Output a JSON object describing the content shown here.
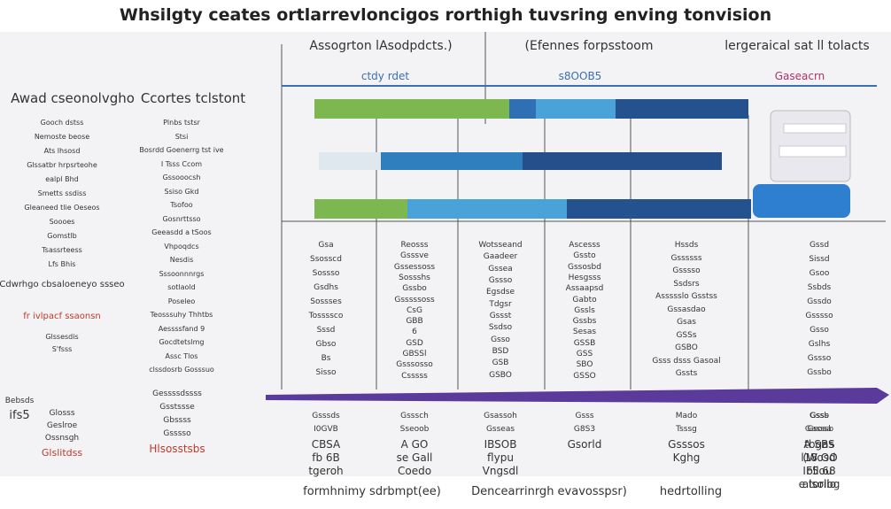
{
  "header": {
    "title": "Whsilgty ceates ortlarrevloncigos rorthigh tuvsring enving tonvision",
    "col_a": "Assogrton lAsodpdcts.)",
    "col_b": "(Efennes forpsstoom",
    "col_c": "lergeraical sat ll tolacts",
    "left_a": "Awad cseonolvgho",
    "left_b": "Ccortes tclstont"
  },
  "bar_labels": [
    "ctdy rdet",
    "s8OOB5",
    "Gaseacrn"
  ],
  "left_list": [
    "Gooch dstss",
    "Nemoste beose",
    "Ats lhsosd",
    "Glssatbr hrpsrteohe",
    "ealpl Bhd",
    "Smetts ssdiss",
    "Gleaneed tlie Oeseos",
    "Soooes",
    "Gomstlb",
    "Tsassrteess",
    "Lfs Bhis",
    "Cdwrhgo cbsaloeneyo ssseo",
    "fr ivlpacf ssaonsn",
    "Glssesdis",
    "S'fsss"
  ],
  "mid_list": [
    "Plnbs tstsr",
    "Stsi",
    "Bosrdd Goenerrg tst ive",
    "I Tsss Ccom",
    "Gssooocsh",
    "Ssiso Gkd",
    "Tsofoo",
    "Gosnrttsso",
    "Geeasdd a tSoos",
    "Vhpoqdcs",
    "Nesdis",
    "Sssoonnnrgs",
    "sotlaold",
    "Poseleo",
    "Teosssuhy Thhtbs",
    "Aessssfand 9",
    "Gocdtetslmg",
    "Assc Tlos",
    "clssdosrb Gosssuo"
  ],
  "grid": [
    [
      "Gsa",
      "Ssosscd",
      "Sossso",
      "Gsdhs",
      "Sossses",
      "Tossssco",
      "Sssd",
      "Gbso",
      "Bs",
      "Sisso"
    ],
    [
      "Reosss",
      "Gsssve",
      "Gssessoss",
      "Sossshs",
      "Gssbo",
      "Gsssssoss",
      "CsG",
      "GBB",
      "6",
      "GSD",
      "GBSSl",
      "Gsssosso",
      "Csssss"
    ],
    [
      "Wotsseand",
      "Gaadeer",
      "Gssea",
      "Gssso",
      "Egsdse",
      "Tdgsr",
      "Gssst",
      "Ssdso",
      "Gsso",
      "BSD",
      "GSB",
      "GSBO"
    ],
    [
      "Ascesss",
      "Gssto",
      "Gssosbd",
      "Hesgsss",
      "Assaapsd",
      "Gabto",
      "Gssls",
      "Gssbs",
      "Sesas",
      "GSSB",
      "GSS",
      "SBO",
      "GSSO"
    ],
    [
      "Hssds",
      "Gssssss",
      "Gsssso",
      "Ssdsrs",
      "Assssslo Gsstss",
      "Gssasdao",
      "Gsas",
      "GSSs",
      "GSBO",
      "Gsss dsss Gasoal",
      "Gssts"
    ],
    [
      "Gssd",
      "Sissd",
      "Gsoo",
      "Ssbds",
      "Gssdo",
      "Gsssso",
      "Gsso",
      "Gslhs",
      "Gssso",
      "Gssbo"
    ]
  ],
  "bottom_left": [
    "Bebsds",
    "Glosss",
    "ifs5",
    "Geslroe",
    "Ossnsgh",
    "Glslitdss"
  ],
  "bottom_left2": [
    "Gessssdssss",
    "Gsstssse",
    "Gbssss",
    "Gsssso",
    "Hlsosstsbs"
  ],
  "bottom": [
    [
      "Gsssds",
      "I0GVB",
      "CBSA",
      "fb 6B",
      "tgeroh"
    ],
    [
      "Gsssch",
      "Sseoob",
      "A GO",
      "se Gall",
      "Coedo"
    ],
    [
      "Gsassoh",
      "Gsseas",
      "IBSOB",
      "flypu",
      "Vngsdl"
    ],
    [
      "Gsss",
      "G8S3",
      "Gsorld"
    ],
    [
      "Mado",
      "Tsssg",
      "Gsssos",
      "Kghg"
    ],
    [
      "Gsss",
      "Gasssb",
      "tbgas",
      "l18 OO",
      "IF5 68",
      "e toribg"
    ],
    [
      "Gssb",
      "Gsosa",
      "A SBS",
      "(Wosd",
      "ollou",
      "alsolio"
    ]
  ],
  "bottom_line": [
    "formhnimy sdrbmpt(ee)",
    "Dencearrinrgh evavosspsr)",
    "hedrtolling"
  ]
}
